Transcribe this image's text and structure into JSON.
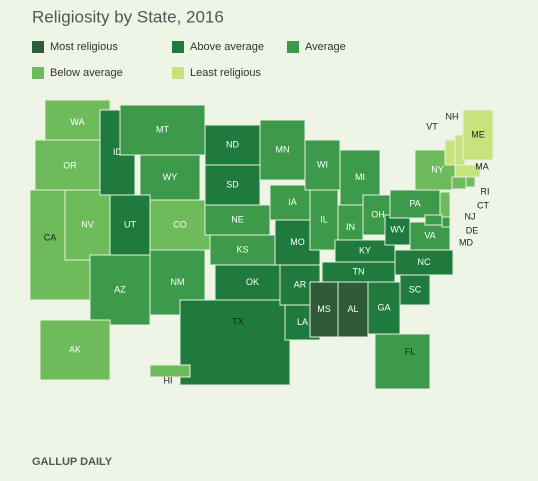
{
  "title": "Religiosity by State, 2016",
  "footer": "GALLUP DAILY",
  "legend": [
    {
      "label": "Most religious",
      "color": "#2f5b38"
    },
    {
      "label": "Above average",
      "color": "#1f7b3d"
    },
    {
      "label": "Average",
      "color": "#3d9a4b"
    },
    {
      "label": "Below average",
      "color": "#6dbb5b"
    },
    {
      "label": "Least religious",
      "color": "#c6e37c"
    }
  ],
  "states": [
    {
      "label": "WA",
      "level": 3
    },
    {
      "label": "OR",
      "level": 3
    },
    {
      "label": "CA",
      "level": 3
    },
    {
      "label": "NV",
      "level": 3
    },
    {
      "label": "ID",
      "level": 1
    },
    {
      "label": "MT",
      "level": 2
    },
    {
      "label": "WY",
      "level": 2
    },
    {
      "label": "UT",
      "level": 1
    },
    {
      "label": "CO",
      "level": 3
    },
    {
      "label": "AZ",
      "level": 2
    },
    {
      "label": "NM",
      "level": 2
    },
    {
      "label": "ND",
      "level": 1
    },
    {
      "label": "SD",
      "level": 1
    },
    {
      "label": "NE",
      "level": 2
    },
    {
      "label": "KS",
      "level": 2
    },
    {
      "label": "OK",
      "level": 1
    },
    {
      "label": "TX",
      "level": 1
    },
    {
      "label": "MN",
      "level": 2
    },
    {
      "label": "IA",
      "level": 2
    },
    {
      "label": "MO",
      "level": 1
    },
    {
      "label": "AR",
      "level": 1
    },
    {
      "label": "LA",
      "level": 1
    },
    {
      "label": "WI",
      "level": 2
    },
    {
      "label": "IL",
      "level": 2
    },
    {
      "label": "MI",
      "level": 2
    },
    {
      "label": "IN",
      "level": 2
    },
    {
      "label": "OH",
      "level": 2
    },
    {
      "label": "KY",
      "level": 1
    },
    {
      "label": "TN",
      "level": 1
    },
    {
      "label": "MS",
      "level": 0
    },
    {
      "label": "AL",
      "level": 0
    },
    {
      "label": "GA",
      "level": 1
    },
    {
      "label": "FL",
      "level": 2
    },
    {
      "label": "SC",
      "level": 1
    },
    {
      "label": "NC",
      "level": 1
    },
    {
      "label": "VA",
      "level": 2
    },
    {
      "label": "WV",
      "level": 1
    },
    {
      "label": "PA",
      "level": 2
    },
    {
      "label": "NY",
      "level": 3
    },
    {
      "label": "VT",
      "level": 4
    },
    {
      "label": "NH",
      "level": 4
    },
    {
      "label": "ME",
      "level": 4
    },
    {
      "label": "MA",
      "level": 4
    },
    {
      "label": "RI",
      "level": 3
    },
    {
      "label": "CT",
      "level": 3
    },
    {
      "label": "NJ",
      "level": 3
    },
    {
      "label": "DE",
      "level": 2
    },
    {
      "label": "MD",
      "level": 2
    },
    {
      "label": "AK",
      "level": 3
    },
    {
      "label": "HI",
      "level": 3
    }
  ]
}
